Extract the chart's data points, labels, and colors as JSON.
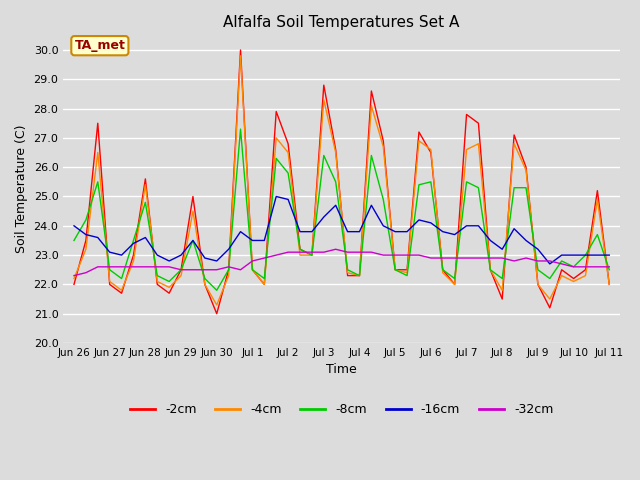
{
  "title": "Alfalfa Soil Temperatures Set A",
  "xlabel": "Time",
  "ylabel": "Soil Temperature (C)",
  "ylim": [
    20.0,
    30.5
  ],
  "yticks": [
    20.0,
    21.0,
    22.0,
    23.0,
    24.0,
    25.0,
    26.0,
    27.0,
    28.0,
    29.0,
    30.0
  ],
  "bg_color": "#dcdcdc",
  "fig_bg_color": "#dcdcdc",
  "annotation_text": "TA_met",
  "annotation_bg": "#ffffcc",
  "annotation_border": "#cc8800",
  "annotation_text_color": "#990000",
  "colors": {
    "-2cm": "#ff0000",
    "-4cm": "#ff8800",
    "-8cm": "#00cc00",
    "-16cm": "#0000cc",
    "-32cm": "#cc00cc"
  },
  "x_tick_labels": [
    "Jun 26",
    "Jun 27",
    "Jun 28",
    "Jun 29",
    "Jun 30",
    "Jul 1",
    "Jul 2",
    "Jul 3",
    "Jul 4",
    "Jul 5",
    "Jul 6",
    "Jul 7",
    "Jul 8",
    "Jul 9",
    "Jul 10",
    "Jul 11"
  ],
  "series_2cm": [
    22.0,
    23.5,
    27.5,
    22.0,
    21.7,
    23.0,
    25.6,
    22.0,
    21.7,
    22.5,
    25.0,
    22.0,
    21.0,
    22.5,
    30.0,
    22.5,
    22.0,
    27.9,
    26.8,
    23.2,
    23.0,
    28.8,
    26.6,
    22.3,
    22.3,
    28.6,
    26.9,
    22.5,
    22.5,
    27.2,
    26.5,
    22.5,
    22.0,
    27.8,
    27.5,
    22.5,
    21.5,
    27.1,
    26.0,
    22.0,
    21.2,
    22.5,
    22.2,
    22.5,
    25.2,
    22.0
  ],
  "series_4cm": [
    22.2,
    23.2,
    26.5,
    22.1,
    21.8,
    22.8,
    25.4,
    22.1,
    21.9,
    22.3,
    24.5,
    22.0,
    21.3,
    22.3,
    29.8,
    22.5,
    22.0,
    27.0,
    26.5,
    23.0,
    23.0,
    28.3,
    26.5,
    22.4,
    22.3,
    28.1,
    26.7,
    22.5,
    22.4,
    26.9,
    26.6,
    22.4,
    22.0,
    26.6,
    26.8,
    22.5,
    21.8,
    26.8,
    25.9,
    22.0,
    21.5,
    22.3,
    22.1,
    22.3,
    24.9,
    22.0
  ],
  "series_8cm": [
    23.5,
    24.2,
    25.5,
    22.5,
    22.2,
    23.5,
    24.8,
    22.3,
    22.1,
    22.5,
    23.5,
    22.2,
    21.8,
    22.5,
    27.3,
    22.5,
    22.2,
    26.3,
    25.8,
    23.2,
    23.0,
    26.4,
    25.5,
    22.5,
    22.3,
    26.4,
    24.9,
    22.5,
    22.3,
    25.4,
    25.5,
    22.5,
    22.2,
    25.5,
    25.3,
    22.5,
    22.2,
    25.3,
    25.3,
    22.5,
    22.2,
    22.8,
    22.6,
    23.0,
    23.7,
    22.5
  ],
  "series_16cm": [
    24.0,
    23.7,
    23.6,
    23.1,
    23.0,
    23.4,
    23.6,
    23.0,
    22.8,
    23.0,
    23.5,
    22.9,
    22.8,
    23.2,
    23.8,
    23.5,
    23.5,
    25.0,
    24.9,
    23.8,
    23.8,
    24.3,
    24.7,
    23.8,
    23.8,
    24.7,
    24.0,
    23.8,
    23.8,
    24.2,
    24.1,
    23.8,
    23.7,
    24.0,
    24.0,
    23.5,
    23.2,
    23.9,
    23.5,
    23.2,
    22.7,
    23.0,
    23.0,
    23.0,
    23.0,
    23.0
  ],
  "series_32cm": [
    22.3,
    22.4,
    22.6,
    22.6,
    22.6,
    22.6,
    22.6,
    22.6,
    22.6,
    22.5,
    22.5,
    22.5,
    22.5,
    22.6,
    22.5,
    22.8,
    22.9,
    23.0,
    23.1,
    23.1,
    23.1,
    23.1,
    23.2,
    23.1,
    23.1,
    23.1,
    23.0,
    23.0,
    23.0,
    23.0,
    22.9,
    22.9,
    22.9,
    22.9,
    22.9,
    22.9,
    22.9,
    22.8,
    22.9,
    22.8,
    22.8,
    22.7,
    22.6,
    22.6,
    22.6,
    22.6
  ]
}
